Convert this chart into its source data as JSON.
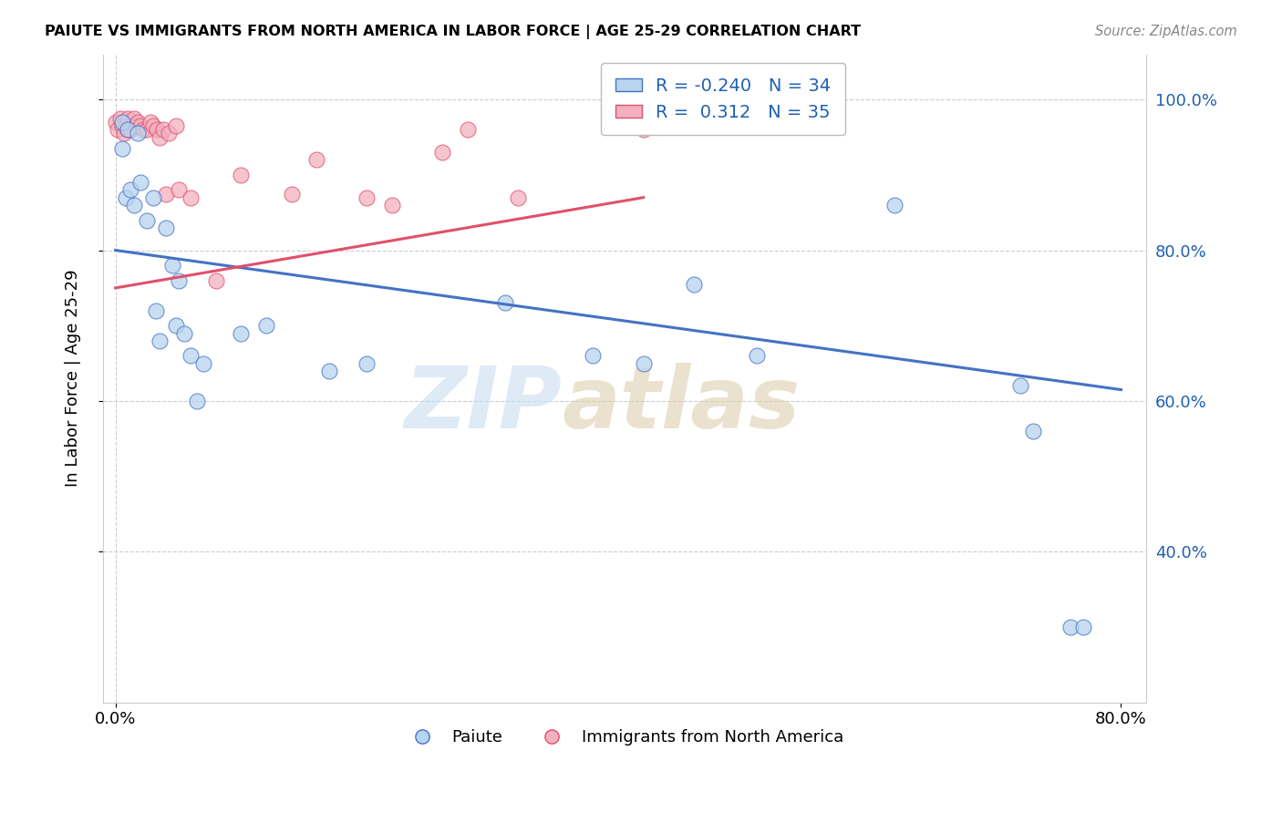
{
  "title": "PAIUTE VS IMMIGRANTS FROM NORTH AMERICA IN LABOR FORCE | AGE 25-29 CORRELATION CHART",
  "source": "Source: ZipAtlas.com",
  "ylabel": "In Labor Force | Age 25-29",
  "xlim": [
    -0.01,
    0.82
  ],
  "ylim": [
    0.2,
    1.06
  ],
  "paiute_color": "#b8d4ee",
  "immigrants_color": "#f2b0c0",
  "paiute_line_color": "#4472c4",
  "immigrants_line_color": "#e0506a",
  "r_paiute": -0.24,
  "n_paiute": 34,
  "r_immigrants": 0.312,
  "n_immigrants": 35,
  "legend_label_paiute": "Paiute",
  "legend_label_immigrants": "Immigrants from North America",
  "paiute_line_x0": 0.0,
  "paiute_line_y0": 0.8,
  "paiute_line_x1": 0.8,
  "paiute_line_y1": 0.615,
  "immigrants_line_x0": 0.0,
  "immigrants_line_y0": 0.75,
  "immigrants_line_x1": 0.42,
  "immigrants_line_y1": 0.87,
  "paiute_scatter_x": [
    0.005,
    0.005,
    0.008,
    0.01,
    0.012,
    0.015,
    0.018,
    0.02,
    0.025,
    0.03,
    0.032,
    0.035,
    0.04,
    0.045,
    0.048,
    0.05,
    0.055,
    0.06,
    0.065,
    0.07,
    0.1,
    0.12,
    0.17,
    0.2,
    0.31,
    0.38,
    0.42,
    0.46,
    0.51,
    0.62,
    0.72,
    0.73,
    0.76,
    0.77
  ],
  "paiute_scatter_y": [
    0.97,
    0.935,
    0.87,
    0.96,
    0.88,
    0.86,
    0.955,
    0.89,
    0.84,
    0.87,
    0.72,
    0.68,
    0.83,
    0.78,
    0.7,
    0.76,
    0.69,
    0.66,
    0.6,
    0.65,
    0.69,
    0.7,
    0.64,
    0.65,
    0.73,
    0.66,
    0.65,
    0.755,
    0.66,
    0.86,
    0.62,
    0.56,
    0.3,
    0.3
  ],
  "immigrants_scatter_x": [
    0.0,
    0.002,
    0.004,
    0.005,
    0.007,
    0.008,
    0.01,
    0.01,
    0.012,
    0.015,
    0.016,
    0.018,
    0.02,
    0.022,
    0.025,
    0.028,
    0.03,
    0.033,
    0.035,
    0.038,
    0.04,
    0.042,
    0.048,
    0.05,
    0.06,
    0.08,
    0.1,
    0.14,
    0.16,
    0.2,
    0.22,
    0.26,
    0.28,
    0.32,
    0.42
  ],
  "immigrants_scatter_y": [
    0.97,
    0.96,
    0.975,
    0.965,
    0.955,
    0.965,
    0.975,
    0.96,
    0.96,
    0.975,
    0.965,
    0.97,
    0.965,
    0.96,
    0.96,
    0.97,
    0.965,
    0.96,
    0.95,
    0.96,
    0.875,
    0.955,
    0.965,
    0.88,
    0.87,
    0.76,
    0.9,
    0.875,
    0.92,
    0.87,
    0.86,
    0.93,
    0.96,
    0.87,
    0.96
  ]
}
